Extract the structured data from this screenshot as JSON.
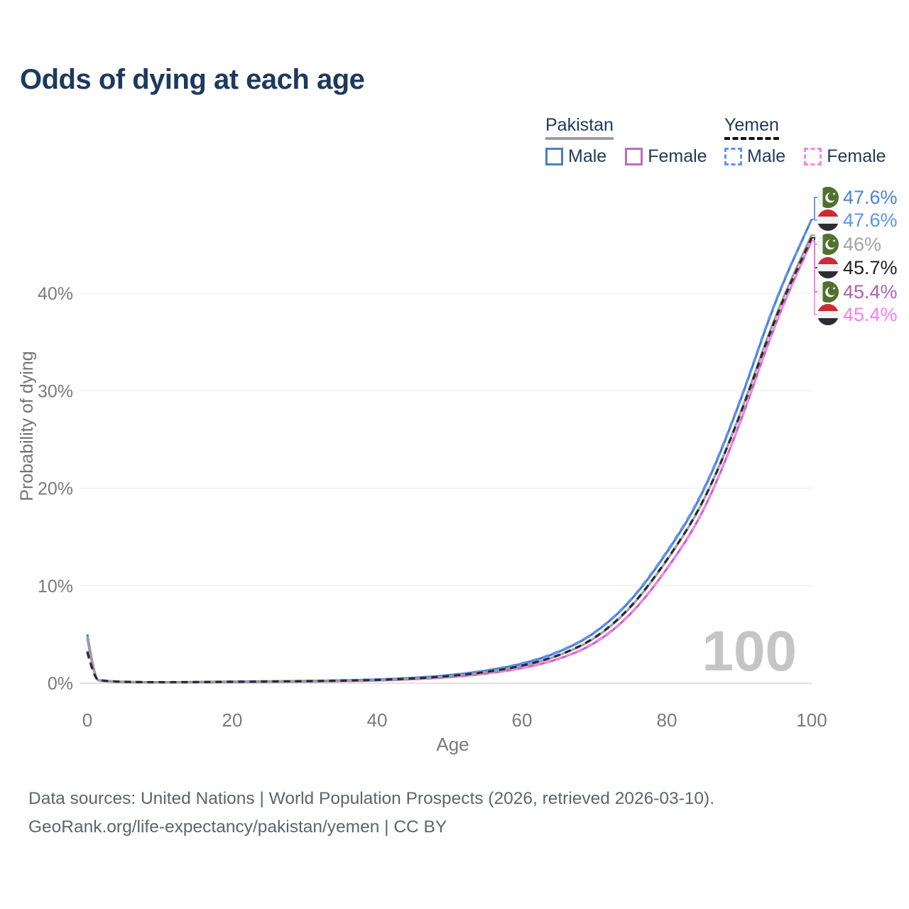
{
  "title": "Odds of dying at each age",
  "legend": {
    "groups": [
      {
        "name": "Pakistan",
        "line_style": "solid",
        "underline_color": "#9e9e9e",
        "items": [
          {
            "label": "Male",
            "color": "#4a7cd1"
          },
          {
            "label": "Female",
            "color": "#bd6cbd"
          }
        ]
      },
      {
        "name": "Yemen",
        "line_style": "dashed",
        "underline_color": "#111111",
        "items": [
          {
            "label": "Male",
            "color": "#5b93f5"
          },
          {
            "label": "Female",
            "color": "#fa80f2"
          }
        ]
      }
    ]
  },
  "chart_data": {
    "type": "line",
    "title": "Odds of dying at each age",
    "xlabel": "Age",
    "ylabel": "Probability of dying",
    "xlim": [
      0,
      100
    ],
    "ylim_percent": [
      0,
      48
    ],
    "grid": "horizontal",
    "x_ticks": [
      {
        "value": 0,
        "label": "0"
      },
      {
        "value": 20,
        "label": "20"
      },
      {
        "value": 40,
        "label": "40"
      },
      {
        "value": 60,
        "label": "60"
      },
      {
        "value": 80,
        "label": "80"
      },
      {
        "value": 100,
        "label": "100"
      }
    ],
    "y_ticks": [
      {
        "value": 0,
        "label": "0%"
      },
      {
        "value": 10,
        "label": "10%"
      },
      {
        "value": 20,
        "label": "20%"
      },
      {
        "value": 30,
        "label": "30%"
      },
      {
        "value": 40,
        "label": "40%"
      }
    ],
    "ages": [
      0,
      1,
      2,
      5,
      10,
      15,
      20,
      25,
      30,
      35,
      40,
      45,
      50,
      55,
      60,
      65,
      70,
      75,
      80,
      85,
      90,
      95,
      100
    ],
    "series": [
      {
        "name": "Pakistan Male",
        "country": "Pakistan",
        "sex": "male",
        "dash": "solid",
        "color": "#4a7cd1",
        "values_percent": [
          5.0,
          0.4,
          0.24,
          0.12,
          0.09,
          0.12,
          0.16,
          0.19,
          0.22,
          0.28,
          0.37,
          0.53,
          0.8,
          1.25,
          1.95,
          3.1,
          5.0,
          8.3,
          13.3,
          19.3,
          28.5,
          39.4,
          47.6
        ]
      },
      {
        "name": "Yemen Male",
        "country": "Yemen",
        "sex": "male",
        "dash": "dashed",
        "color": "#5b93f5",
        "values_percent": [
          3.3,
          0.45,
          0.27,
          0.14,
          0.1,
          0.13,
          0.17,
          0.2,
          0.23,
          0.29,
          0.38,
          0.54,
          0.82,
          1.27,
          1.98,
          3.15,
          5.05,
          8.35,
          13.4,
          19.4,
          28.6,
          39.5,
          47.6
        ]
      },
      {
        "name": "Pakistan Female",
        "country": "Pakistan",
        "sex": "female",
        "dash": "solid",
        "color": "#bd6cbd",
        "values_percent": [
          4.6,
          0.36,
          0.21,
          0.1,
          0.07,
          0.09,
          0.11,
          0.13,
          0.16,
          0.2,
          0.27,
          0.4,
          0.6,
          0.95,
          1.5,
          2.4,
          3.95,
          6.9,
          11.6,
          17.3,
          26.3,
          37.1,
          45.4
        ]
      },
      {
        "name": "Yemen Female",
        "country": "Yemen",
        "sex": "female",
        "dash": "dashed",
        "color": "#fa80f2",
        "values_percent": [
          3.1,
          0.4,
          0.23,
          0.11,
          0.08,
          0.1,
          0.12,
          0.14,
          0.17,
          0.21,
          0.28,
          0.41,
          0.62,
          0.97,
          1.53,
          2.43,
          4.0,
          6.95,
          11.65,
          17.35,
          26.35,
          37.1,
          45.4
        ]
      },
      {
        "name": "Pakistan Total",
        "country": "Pakistan",
        "sex": "total",
        "dash": "solid",
        "color": "#9c9c9c",
        "values_percent": [
          4.8,
          0.38,
          0.22,
          0.11,
          0.08,
          0.1,
          0.13,
          0.16,
          0.19,
          0.24,
          0.32,
          0.46,
          0.7,
          1.1,
          1.72,
          2.75,
          4.45,
          7.6,
          12.5,
          18.3,
          27.2,
          37.9,
          46.0
        ]
      },
      {
        "name": "Yemen Total",
        "country": "Yemen",
        "sex": "total",
        "dash": "dashed",
        "color": "#2b2b2b",
        "values_percent": [
          3.2,
          0.42,
          0.25,
          0.13,
          0.09,
          0.11,
          0.14,
          0.17,
          0.2,
          0.25,
          0.33,
          0.47,
          0.72,
          1.12,
          1.75,
          2.78,
          4.5,
          7.65,
          12.55,
          18.35,
          27.1,
          37.7,
          45.7
        ]
      }
    ],
    "end_labels": [
      {
        "flag": "pakistan",
        "value": "47.6%",
        "color": "#4a82dc",
        "series": "Pakistan Male"
      },
      {
        "flag": "yemen",
        "value": "47.6%",
        "color": "#5b93f2",
        "series": "Yemen Male"
      },
      {
        "flag": "pakistan",
        "value": "46%",
        "color": "#a3a3a3",
        "series": "Pakistan Total"
      },
      {
        "flag": "yemen",
        "value": "45.7%",
        "color": "#1f1f1f",
        "series": "Yemen Total"
      },
      {
        "flag": "pakistan",
        "value": "45.4%",
        "color": "#ad62ad",
        "series": "Pakistan Female"
      },
      {
        "flag": "yemen",
        "value": "45.4%",
        "color": "#fb7df2",
        "series": "Yemen Female"
      }
    ],
    "watermark": "100",
    "legend_position": "top-right"
  },
  "footer": {
    "line1": "Data sources: United Nations | World Population Prospects (2026, retrieved 2026-03-10).",
    "line2": "GeoRank.org/life-expectancy/pakistan/yemen | CC BY"
  }
}
